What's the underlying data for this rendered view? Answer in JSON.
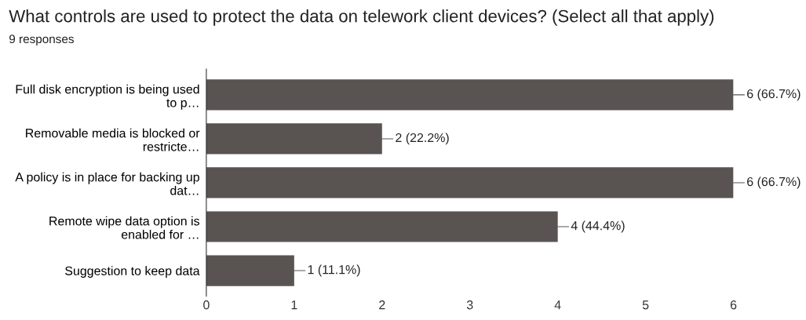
{
  "chart_data": {
    "type": "bar",
    "orientation": "horizontal",
    "title": "What controls are used to protect the data on telework client devices? (Select all that apply)",
    "subtitle": "9 responses",
    "categories": [
      "Full disk encryption is being used\nto p…",
      "Removable media is blocked or\nrestricte…",
      "A policy is in place for backing up\ndat…",
      "Remote wipe data option is\nenabled for …",
      "Suggestion to keep data"
    ],
    "values": [
      6,
      2,
      6,
      4,
      1
    ],
    "value_labels": [
      "6 (66.7%)",
      "2 (22.2%)",
      "6 (66.7%)",
      "4 (44.4%)",
      "1 (11.1%)"
    ],
    "color": "#595352",
    "xlim": [
      0,
      6
    ],
    "xticks": [
      0,
      1,
      2,
      3,
      4,
      5,
      6
    ],
    "grid": false,
    "legend": false
  }
}
